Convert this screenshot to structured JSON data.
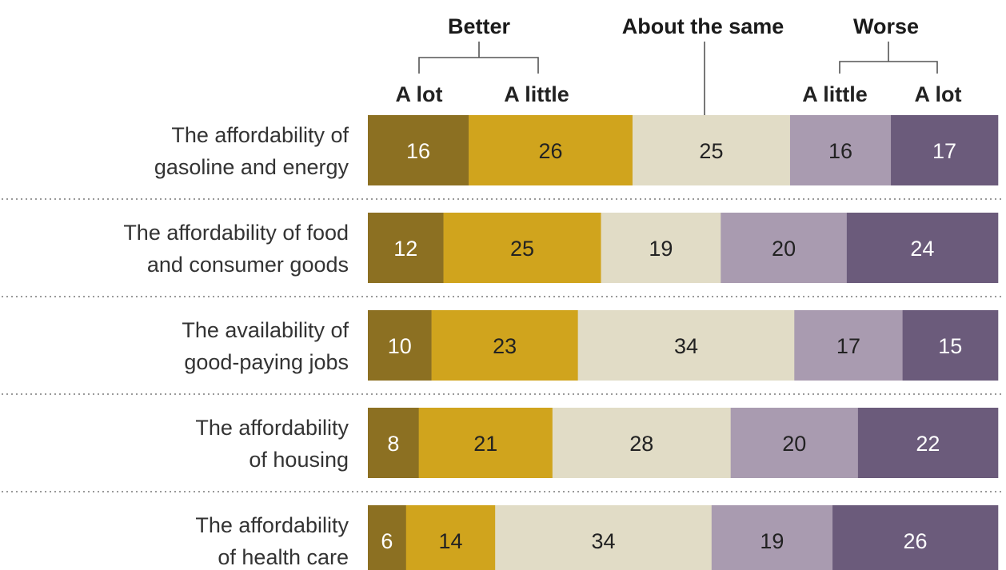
{
  "chart_data": {
    "type": "bar",
    "orientation": "horizontal-stacked",
    "group_headers": {
      "better": "Better",
      "same": "About the same",
      "worse": "Worse"
    },
    "legend": [
      {
        "key": "better_alot",
        "label": "A lot",
        "color": "#8c7022",
        "text_color": "#ffffff",
        "label_color": "#a6801f"
      },
      {
        "key": "better_alittle",
        "label": "A little",
        "color": "#d0a41d",
        "text_color": "#222222",
        "label_color": "#d3a318"
      },
      {
        "key": "same",
        "label": "",
        "color": "#e1dcc6",
        "text_color": "#222222",
        "label_color": "#222222"
      },
      {
        "key": "worse_alittle",
        "label": "A little",
        "color": "#a99bb0",
        "text_color": "#222222",
        "label_color": "#a79bb1"
      },
      {
        "key": "worse_alot",
        "label": "A lot",
        "color": "#6b5b7b",
        "text_color": "#ffffff",
        "label_color": "#6b5b7b"
      }
    ],
    "categories": [
      [
        "The affordability of",
        "gasoline and energy"
      ],
      [
        "The affordability of food",
        "and consumer goods"
      ],
      [
        "The availability of",
        "good-paying jobs"
      ],
      [
        "The affordability",
        "of housing"
      ],
      [
        "The affordability",
        "of health care"
      ]
    ],
    "series": [
      {
        "name": "A lot",
        "values": [
          16,
          12,
          10,
          8,
          6
        ]
      },
      {
        "name": "A little",
        "values": [
          26,
          25,
          23,
          21,
          14
        ]
      },
      {
        "name": "About the same",
        "values": [
          25,
          19,
          34,
          28,
          34
        ]
      },
      {
        "name": "A little",
        "values": [
          16,
          20,
          17,
          20,
          19
        ]
      },
      {
        "name": "A lot",
        "values": [
          17,
          24,
          15,
          22,
          26
        ]
      }
    ]
  }
}
